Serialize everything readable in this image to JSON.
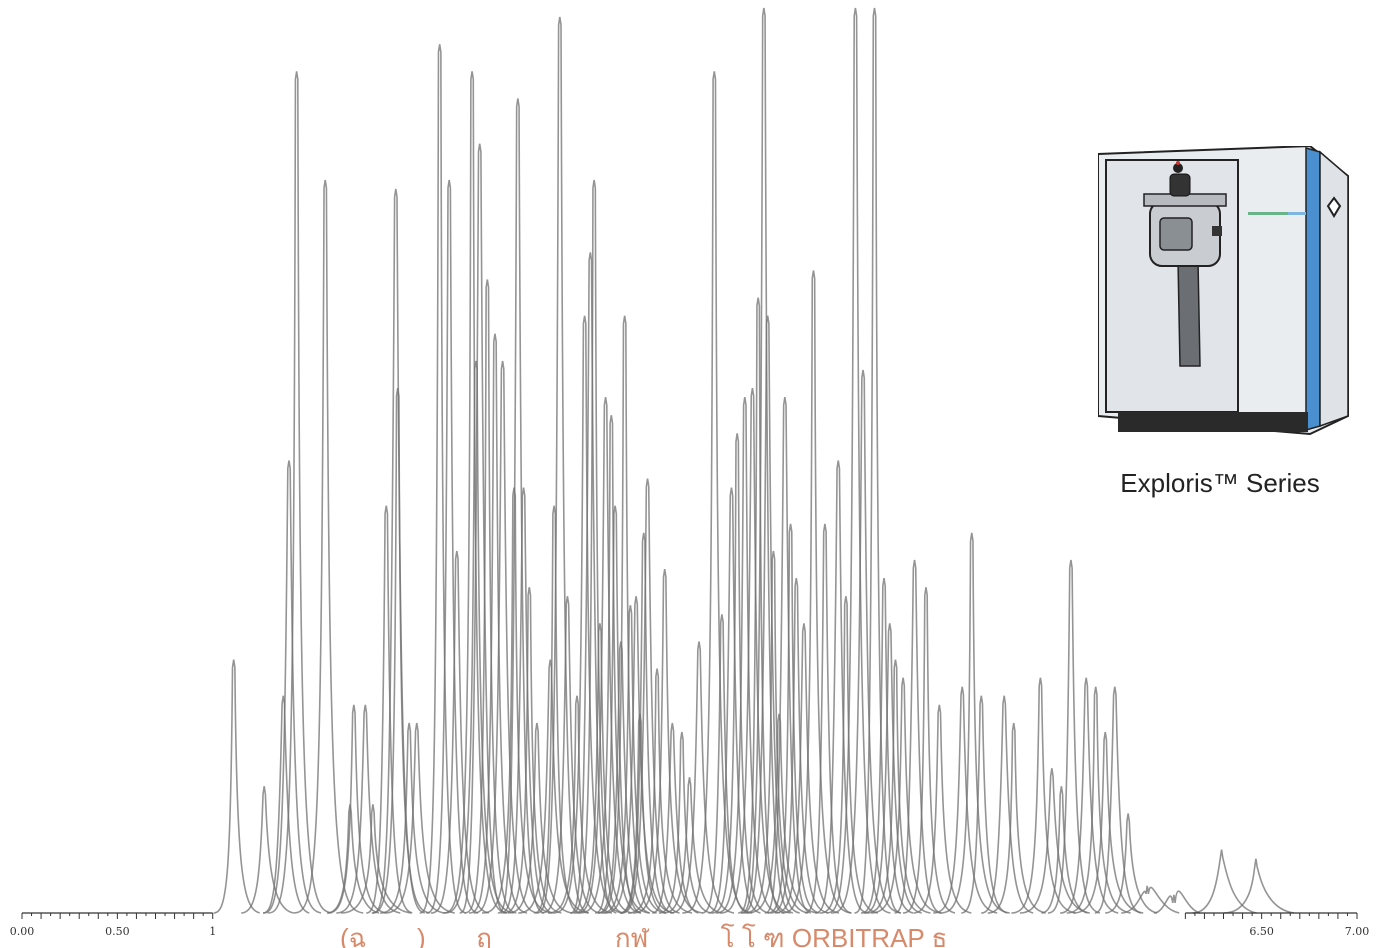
{
  "chart_data": {
    "type": "line",
    "title": "",
    "xlabel": "",
    "ylabel": "",
    "description_x_ticks": [
      "0.00",
      "0.50",
      "1",
      "6.50",
      "7.00"
    ],
    "x_ticks": [
      {
        "value": 0.0,
        "label": "0.00"
      },
      {
        "value": 0.5,
        "label": "0.50"
      },
      {
        "value": 1.0,
        "label": "1"
      },
      {
        "value": 6.5,
        "label": "6.50"
      },
      {
        "value": 7.0,
        "label": "7.00"
      }
    ],
    "xlim": [
      0,
      7
    ],
    "ylim": [
      0,
      1
    ],
    "grid": false,
    "series": [
      {
        "peaks": [
          {
            "x": 1.11,
            "h": 0.28
          },
          {
            "x": 1.27,
            "h": 0.14
          },
          {
            "x": 1.4,
            "h": 0.5
          },
          {
            "x": 1.44,
            "h": 0.93
          },
          {
            "x": 1.59,
            "h": 0.81
          },
          {
            "x": 1.37,
            "h": 0.24
          },
          {
            "x": 1.72,
            "h": 0.12
          },
          {
            "x": 1.74,
            "h": 0.23
          },
          {
            "x": 1.8,
            "h": 0.23
          },
          {
            "x": 1.84,
            "h": 0.12
          },
          {
            "x": 1.91,
            "h": 0.45
          },
          {
            "x": 1.96,
            "h": 0.8
          },
          {
            "x": 1.97,
            "h": 0.58
          },
          {
            "x": 2.03,
            "h": 0.21
          },
          {
            "x": 2.07,
            "h": 0.21
          },
          {
            "x": 2.19,
            "h": 0.96
          },
          {
            "x": 2.24,
            "h": 0.81
          },
          {
            "x": 2.28,
            "h": 0.4
          },
          {
            "x": 2.36,
            "h": 0.93
          },
          {
            "x": 2.38,
            "h": 0.61
          },
          {
            "x": 2.4,
            "h": 0.85
          },
          {
            "x": 2.44,
            "h": 0.7
          },
          {
            "x": 2.48,
            "h": 0.64
          },
          {
            "x": 2.52,
            "h": 0.61
          },
          {
            "x": 2.58,
            "h": 0.47
          },
          {
            "x": 2.6,
            "h": 0.9
          },
          {
            "x": 2.63,
            "h": 0.47
          },
          {
            "x": 2.66,
            "h": 0.36
          },
          {
            "x": 2.7,
            "h": 0.21
          },
          {
            "x": 2.77,
            "h": 0.28
          },
          {
            "x": 2.79,
            "h": 0.45
          },
          {
            "x": 2.82,
            "h": 0.99
          },
          {
            "x": 2.86,
            "h": 0.35
          },
          {
            "x": 2.91,
            "h": 0.24
          },
          {
            "x": 2.95,
            "h": 0.66
          },
          {
            "x": 2.98,
            "h": 0.73
          },
          {
            "x": 3.0,
            "h": 0.81
          },
          {
            "x": 3.03,
            "h": 0.32
          },
          {
            "x": 3.06,
            "h": 0.57
          },
          {
            "x": 3.09,
            "h": 0.55
          },
          {
            "x": 3.11,
            "h": 0.45
          },
          {
            "x": 3.14,
            "h": 0.3
          },
          {
            "x": 3.16,
            "h": 0.66
          },
          {
            "x": 3.19,
            "h": 0.34
          },
          {
            "x": 3.22,
            "h": 0.35
          },
          {
            "x": 3.24,
            "h": 0.22
          },
          {
            "x": 3.26,
            "h": 0.42
          },
          {
            "x": 3.28,
            "h": 0.48
          },
          {
            "x": 3.33,
            "h": 0.27
          },
          {
            "x": 3.37,
            "h": 0.38
          },
          {
            "x": 3.41,
            "h": 0.21
          },
          {
            "x": 3.46,
            "h": 0.2
          },
          {
            "x": 3.5,
            "h": 0.15
          },
          {
            "x": 3.55,
            "h": 0.3
          },
          {
            "x": 3.63,
            "h": 0.93
          },
          {
            "x": 3.67,
            "h": 0.33
          },
          {
            "x": 3.72,
            "h": 0.47
          },
          {
            "x": 3.75,
            "h": 0.53
          },
          {
            "x": 3.79,
            "h": 0.57
          },
          {
            "x": 3.83,
            "h": 0.58
          },
          {
            "x": 3.86,
            "h": 0.68
          },
          {
            "x": 3.89,
            "h": 1.0
          },
          {
            "x": 3.91,
            "h": 0.66
          },
          {
            "x": 3.94,
            "h": 0.4
          },
          {
            "x": 3.97,
            "h": 0.22
          },
          {
            "x": 4.0,
            "h": 0.57
          },
          {
            "x": 4.03,
            "h": 0.43
          },
          {
            "x": 4.06,
            "h": 0.37
          },
          {
            "x": 4.1,
            "h": 0.32
          },
          {
            "x": 4.15,
            "h": 0.71
          },
          {
            "x": 4.21,
            "h": 0.43
          },
          {
            "x": 4.28,
            "h": 0.5
          },
          {
            "x": 4.32,
            "h": 0.35
          },
          {
            "x": 4.37,
            "h": 1.0
          },
          {
            "x": 4.41,
            "h": 0.6
          },
          {
            "x": 4.47,
            "h": 1.0
          },
          {
            "x": 4.52,
            "h": 0.37
          },
          {
            "x": 4.55,
            "h": 0.32
          },
          {
            "x": 4.58,
            "h": 0.28
          },
          {
            "x": 4.62,
            "h": 0.26
          },
          {
            "x": 4.68,
            "h": 0.39
          },
          {
            "x": 4.74,
            "h": 0.36
          },
          {
            "x": 4.81,
            "h": 0.23
          },
          {
            "x": 4.93,
            "h": 0.25
          },
          {
            "x": 4.98,
            "h": 0.42
          },
          {
            "x": 5.03,
            "h": 0.24
          },
          {
            "x": 5.15,
            "h": 0.24
          },
          {
            "x": 5.2,
            "h": 0.21
          },
          {
            "x": 5.34,
            "h": 0.26
          },
          {
            "x": 5.4,
            "h": 0.16
          },
          {
            "x": 5.45,
            "h": 0.14
          },
          {
            "x": 5.5,
            "h": 0.39
          },
          {
            "x": 5.58,
            "h": 0.26
          },
          {
            "x": 5.63,
            "h": 0.25
          },
          {
            "x": 5.68,
            "h": 0.2
          },
          {
            "x": 5.73,
            "h": 0.25
          },
          {
            "x": 5.8,
            "h": 0.11
          },
          {
            "x": 5.9,
            "h": 0.03
          },
          {
            "x": 6.29,
            "h": 0.07
          },
          {
            "x": 6.47,
            "h": 0.06
          },
          {
            "x": 6.04,
            "h": 0.02
          }
        ]
      }
    ]
  },
  "instrument": {
    "label": "Exploris™ Series",
    "colors": {
      "body": "#e8ecef",
      "accent": "#4a90d0",
      "base": "#2a2a2a"
    }
  },
  "caption": {
    "text": "(ฉ  ___)  ___ฤ  ___ ____ กฬ  ____ โ โ  ฑ ORBITRAP ธ"
  }
}
